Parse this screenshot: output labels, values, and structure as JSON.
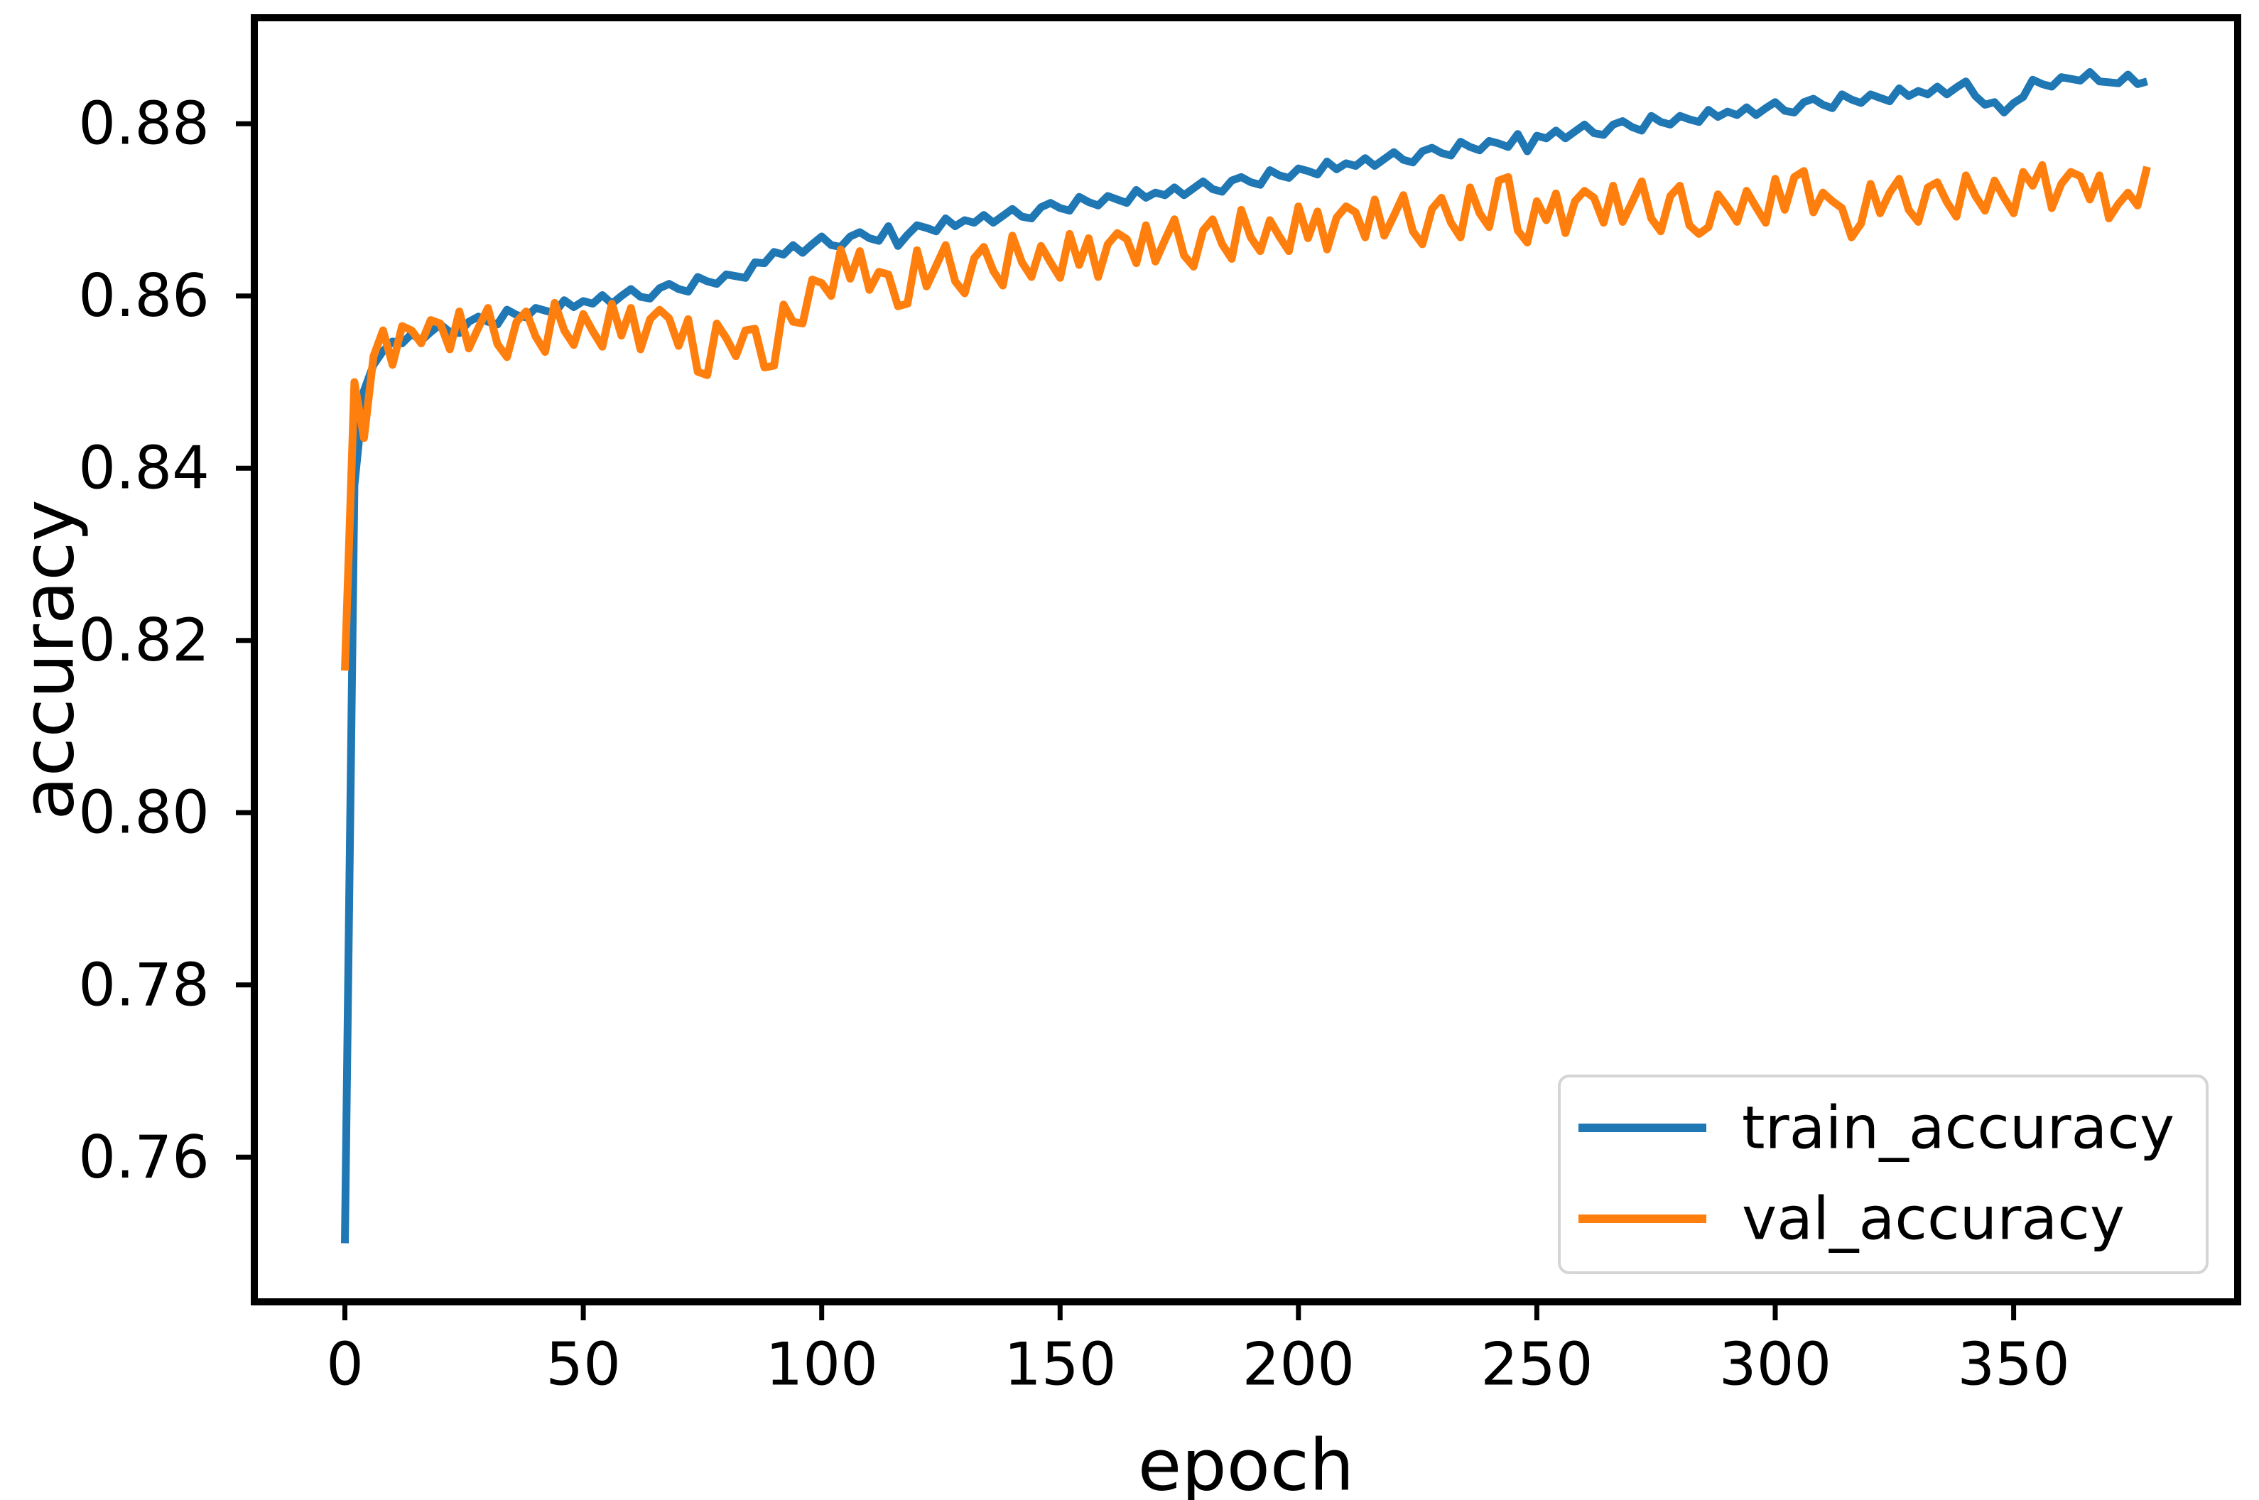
{
  "figure": {
    "background": "#ffffff",
    "xlabel": "epoch",
    "ylabel": "accuracy"
  },
  "chart_data": {
    "type": "line",
    "title": "",
    "xlabel": "epoch",
    "ylabel": "accuracy",
    "grid": false,
    "legend_position": "lower right",
    "xlim": [
      -19,
      397
    ],
    "ylim": [
      0.7432,
      0.8923
    ],
    "x_ticks": {
      "values": [
        0,
        50,
        100,
        150,
        200,
        250,
        300,
        350
      ],
      "labels": [
        "0",
        "50",
        "100",
        "150",
        "200",
        "250",
        "300",
        "350"
      ]
    },
    "y_ticks": {
      "values": [
        0.76,
        0.78,
        0.8,
        0.82,
        0.84,
        0.86,
        0.88
      ],
      "labels": [
        "0.76",
        "0.78",
        "0.80",
        "0.82",
        "0.84",
        "0.86",
        "0.88"
      ]
    },
    "x_start": 0,
    "x_step": 2,
    "series": [
      {
        "name": "train_accuracy",
        "color": "#1f77b4",
        "values": [
          0.75,
          0.838,
          0.849,
          0.852,
          0.8536,
          0.8547,
          0.8545,
          0.8556,
          0.8548,
          0.8558,
          0.8567,
          0.8558,
          0.8557,
          0.857,
          0.8576,
          0.857,
          0.8567,
          0.8584,
          0.8578,
          0.8575,
          0.8586,
          0.8583,
          0.858,
          0.8595,
          0.8587,
          0.8594,
          0.8591,
          0.8601,
          0.8591,
          0.86,
          0.8608,
          0.8599,
          0.8597,
          0.8609,
          0.8614,
          0.8608,
          0.8605,
          0.8622,
          0.8617,
          0.8614,
          0.8625,
          0.8623,
          0.8621,
          0.8639,
          0.8638,
          0.8651,
          0.8648,
          0.8659,
          0.865,
          0.866,
          0.8669,
          0.8659,
          0.8657,
          0.8669,
          0.8674,
          0.8667,
          0.8664,
          0.8681,
          0.8658,
          0.8671,
          0.8682,
          0.8679,
          0.8675,
          0.869,
          0.8681,
          0.8688,
          0.8685,
          0.8694,
          0.8685,
          0.8693,
          0.8701,
          0.8692,
          0.869,
          0.8703,
          0.8708,
          0.8702,
          0.8699,
          0.8715,
          0.8709,
          0.8705,
          0.8716,
          0.8712,
          0.8708,
          0.8723,
          0.8714,
          0.872,
          0.8717,
          0.8726,
          0.8717,
          0.8725,
          0.8733,
          0.8724,
          0.8721,
          0.8734,
          0.8738,
          0.8732,
          0.8729,
          0.8746,
          0.874,
          0.8737,
          0.8748,
          0.8745,
          0.8741,
          0.8756,
          0.8747,
          0.8754,
          0.8751,
          0.876,
          0.8751,
          0.8759,
          0.8767,
          0.8758,
          0.8755,
          0.8768,
          0.8772,
          0.8766,
          0.8763,
          0.8779,
          0.8773,
          0.8769,
          0.878,
          0.8777,
          0.8773,
          0.8788,
          0.8768,
          0.8786,
          0.8783,
          0.8792,
          0.8783,
          0.8791,
          0.8799,
          0.8789,
          0.8787,
          0.8799,
          0.8803,
          0.8796,
          0.8792,
          0.8809,
          0.8802,
          0.8799,
          0.8809,
          0.8805,
          0.8802,
          0.8816,
          0.8808,
          0.8814,
          0.881,
          0.8819,
          0.881,
          0.8818,
          0.8825,
          0.8815,
          0.8813,
          0.8825,
          0.8829,
          0.8822,
          0.8818,
          0.8834,
          0.8828,
          0.8824,
          0.8834,
          0.883,
          0.8826,
          0.8841,
          0.8832,
          0.8838,
          0.8834,
          0.8843,
          0.8834,
          0.8842,
          0.8849,
          0.8832,
          0.8822,
          0.8825,
          0.8813,
          0.8824,
          0.8831,
          0.8851,
          0.8846,
          0.8843,
          0.8854,
          0.8852,
          0.885,
          0.886,
          0.8849,
          0.8848,
          0.8847,
          0.8857,
          0.8846,
          0.8849
        ]
      },
      {
        "name": "val_accuracy",
        "color": "#ff7f0e",
        "values": [
          0.8165,
          0.85,
          0.8435,
          0.853,
          0.856,
          0.852,
          0.8565,
          0.856,
          0.8545,
          0.8572,
          0.8568,
          0.8538,
          0.8582,
          0.8539,
          0.8563,
          0.8586,
          0.8544,
          0.8529,
          0.857,
          0.8582,
          0.8553,
          0.8535,
          0.8592,
          0.856,
          0.8543,
          0.8579,
          0.8559,
          0.8541,
          0.8591,
          0.8554,
          0.8586,
          0.8538,
          0.8573,
          0.8584,
          0.8574,
          0.8542,
          0.8573,
          0.8512,
          0.8508,
          0.8568,
          0.8551,
          0.853,
          0.856,
          0.8562,
          0.8517,
          0.8519,
          0.859,
          0.857,
          0.8568,
          0.8619,
          0.8615,
          0.86,
          0.8654,
          0.862,
          0.8652,
          0.8607,
          0.8628,
          0.8625,
          0.8588,
          0.8591,
          0.8653,
          0.8611,
          0.8635,
          0.8659,
          0.8617,
          0.8603,
          0.8644,
          0.8657,
          0.8629,
          0.8612,
          0.867,
          0.8639,
          0.8622,
          0.8658,
          0.8639,
          0.8621,
          0.8672,
          0.8636,
          0.8667,
          0.8622,
          0.866,
          0.8673,
          0.8666,
          0.8638,
          0.8682,
          0.864,
          0.8665,
          0.8689,
          0.8647,
          0.8634,
          0.8676,
          0.8689,
          0.866,
          0.8643,
          0.87,
          0.8668,
          0.8652,
          0.8688,
          0.8669,
          0.8652,
          0.8704,
          0.8667,
          0.8698,
          0.8654,
          0.8691,
          0.8704,
          0.8697,
          0.8668,
          0.8712,
          0.867,
          0.8693,
          0.8717,
          0.8675,
          0.866,
          0.8701,
          0.8714,
          0.8685,
          0.8668,
          0.8726,
          0.8696,
          0.868,
          0.8734,
          0.8738,
          0.8676,
          0.8662,
          0.871,
          0.8688,
          0.8719,
          0.8673,
          0.871,
          0.8722,
          0.8714,
          0.8685,
          0.8728,
          0.8686,
          0.8709,
          0.8733,
          0.869,
          0.8675,
          0.8716,
          0.8728,
          0.8682,
          0.8672,
          0.868,
          0.8718,
          0.8703,
          0.8686,
          0.8722,
          0.8703,
          0.8685,
          0.8736,
          0.87,
          0.8738,
          0.8745,
          0.8697,
          0.872,
          0.871,
          0.8702,
          0.8668,
          0.8684,
          0.873,
          0.8696,
          0.872,
          0.8736,
          0.87,
          0.8686,
          0.8726,
          0.8732,
          0.8709,
          0.8692,
          0.874,
          0.8716,
          0.8699,
          0.8734,
          0.8714,
          0.8696,
          0.8744,
          0.8728,
          0.8752,
          0.8702,
          0.873,
          0.8744,
          0.8739,
          0.8712,
          0.874,
          0.869,
          0.8707,
          0.872,
          0.8705,
          0.875
        ]
      }
    ]
  },
  "legend": {
    "items": [
      {
        "label": "train_accuracy"
      },
      {
        "label": "val_accuracy"
      }
    ]
  }
}
